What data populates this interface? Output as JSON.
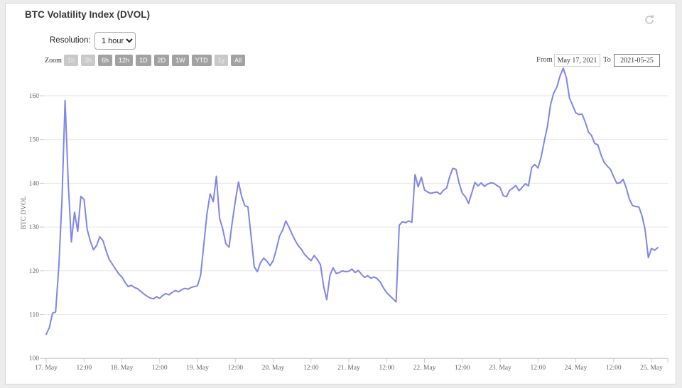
{
  "title": "BTC Volatility Index (DVOL)",
  "resolution": {
    "label": "Resolution:",
    "value": "1 hour"
  },
  "range_selector": {
    "zoom_label": "Zoom",
    "buttons": [
      {
        "label": "1h",
        "enabled": false
      },
      {
        "label": "3h",
        "enabled": false
      },
      {
        "label": "6h",
        "enabled": true
      },
      {
        "label": "12h",
        "enabled": true
      },
      {
        "label": "1D",
        "enabled": true
      },
      {
        "label": "2D",
        "enabled": true
      },
      {
        "label": "1W",
        "enabled": true
      },
      {
        "label": "YTD",
        "enabled": true
      },
      {
        "label": "1y",
        "enabled": false
      },
      {
        "label": "All",
        "enabled": true
      }
    ],
    "from_label": "From",
    "from_value": "May 17, 2021",
    "to_label": "To",
    "to_value": "2021-05-25"
  },
  "colors": {
    "line": "#8085e9",
    "grid": "#e6e6e6",
    "axis": "#c9c9c9",
    "tick": "#cccccc",
    "label": "#666666",
    "icon": "#c4c4c4"
  },
  "chart_data": {
    "type": "line",
    "title": "BTC Volatility Index (DVOL)",
    "ylabel": "BTC DVOL",
    "ylim": [
      100,
      160
    ],
    "y_ticks": [
      100,
      110,
      120,
      130,
      140,
      150,
      160
    ],
    "x_unit": "hours since 2021-05-17 00:00",
    "x_tick_hours": [
      0,
      12,
      24,
      36,
      48,
      60,
      72,
      84,
      96,
      108,
      120,
      132,
      144,
      156,
      168,
      180,
      192
    ],
    "x_tick_labels": [
      "17. May",
      "12:00",
      "18. May",
      "12:00",
      "19. May",
      "12:00",
      "20. May",
      "12:00",
      "21. May",
      "12:00",
      "22. May",
      "12:00",
      "23. May",
      "12:00",
      "24. May",
      "12:00",
      "25. May"
    ],
    "grid": true,
    "legend": "none",
    "series": [
      {
        "name": "BTC DVOL",
        "start_hour": 0,
        "step_hours": 1,
        "values": [
          105.5,
          107,
          110.3,
          110.6,
          121,
          136,
          158.9,
          140,
          126.6,
          133.4,
          129,
          137,
          136.3,
          129.5,
          126.8,
          124.8,
          125.8,
          127.8,
          126.9,
          124.6,
          122.6,
          121.5,
          120.4,
          119.3,
          118.6,
          117.4,
          116.4,
          116.7,
          116.2,
          115.9,
          115.3,
          114.7,
          114.2,
          113.8,
          113.6,
          114.1,
          113.7,
          114.4,
          114.8,
          114.5,
          115.1,
          115.5,
          115.2,
          115.7,
          116,
          115.8,
          116.2,
          116.4,
          116.6,
          119,
          126,
          133,
          137.6,
          135.8,
          141.6,
          132,
          129.6,
          126.2,
          125.4,
          131,
          136,
          140.3,
          137,
          134.9,
          134.6,
          128,
          120.9,
          119.8,
          121.9,
          122.9,
          122.2,
          121.2,
          122.3,
          124.9,
          127.9,
          129.3,
          131.4,
          130,
          128.4,
          126.9,
          125.7,
          124.9,
          123.7,
          123,
          122.3,
          123.5,
          122.6,
          121.4,
          116.5,
          113.4,
          118.9,
          120.7,
          119.4,
          119.6,
          120,
          119.8,
          119.9,
          120.4,
          119.6,
          120.1,
          119.2,
          118.5,
          118.9,
          118.3,
          118.6,
          118.2,
          117.4,
          116.1,
          115,
          114.3,
          113.6,
          112.9,
          130.4,
          131.2,
          131,
          131.4,
          131.1,
          142,
          139.2,
          141.4,
          138.5,
          138,
          137.7,
          137.9,
          138,
          137.5,
          138.4,
          138.9,
          141.5,
          143.4,
          143.2,
          140,
          137.7,
          136.9,
          135.4,
          137.8,
          140.2,
          139.4,
          140.1,
          139.3,
          139.8,
          140.1,
          140,
          139.5,
          139,
          137.2,
          136.9,
          138.4,
          138.9,
          139.5,
          138.3,
          139.1,
          139.9,
          139.4,
          143.6,
          144.3,
          143.5,
          146,
          149.6,
          153,
          158,
          160.6,
          162,
          164.5,
          166.3,
          164.1,
          159.5,
          157.8,
          156.1,
          155.7,
          155.8,
          154,
          151.7,
          150.9,
          149.1,
          148.8,
          146.5,
          144.8,
          143.9,
          143.2,
          141.5,
          140,
          140.1,
          140.9,
          139,
          136.4,
          134.9,
          134.7,
          134.6,
          132.6,
          129.4,
          123,
          125.1,
          124.7,
          125.3
        ]
      }
    ]
  }
}
